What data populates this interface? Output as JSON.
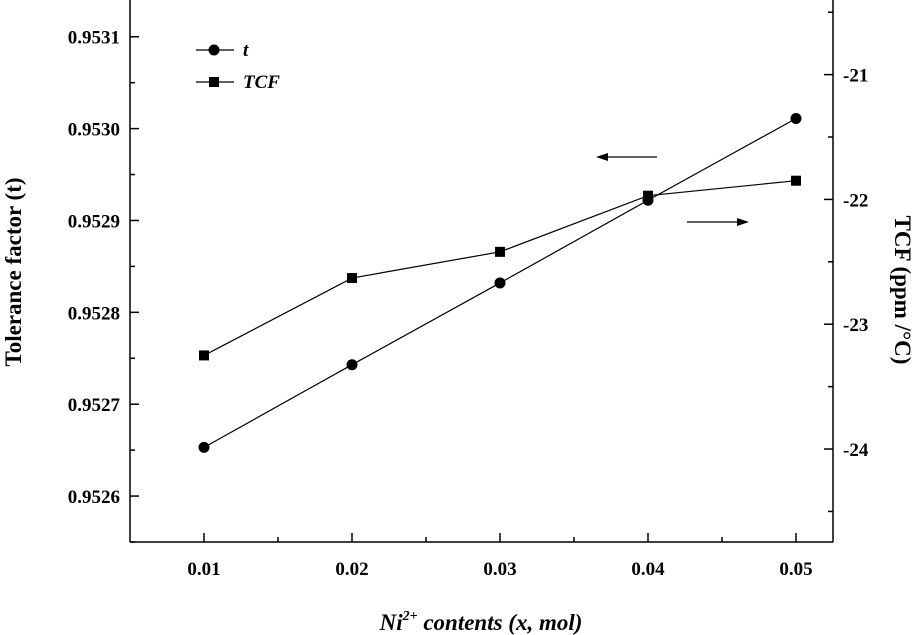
{
  "chart_data": {
    "type": "line",
    "x": [
      0.01,
      0.02,
      0.03,
      0.04,
      0.05
    ],
    "x_tick_labels": [
      "0.01",
      "0.02",
      "0.03",
      "0.04",
      "0.05"
    ],
    "xlim": [
      0.005,
      0.0525
    ],
    "xlabel": {
      "prefix": "Ni",
      "superscript": "2+",
      "suffix": " contents (x, mol)"
    },
    "y_left": {
      "label": "Tolerance factor (t)",
      "ylim": [
        0.95255,
        0.95314
      ],
      "ticks": [
        0.9526,
        0.9527,
        0.9528,
        0.9529,
        0.953,
        0.9531
      ],
      "tick_labels": [
        "0.9526",
        "0.9527",
        "0.9528",
        "0.9529",
        "0.9530",
        "0.9531"
      ]
    },
    "y_right": {
      "label": "TCF (ppm /°C)",
      "ylim": [
        -24.745,
        -20.402
      ],
      "ticks": [
        -21,
        -22,
        -23,
        -24
      ],
      "tick_labels": [
        "-21",
        "-22",
        "-23",
        "-24"
      ]
    },
    "series": [
      {
        "name": "t",
        "axis": "left",
        "marker": "circle",
        "values": [
          0.952653,
          0.952743,
          0.952832,
          0.952922,
          0.953011
        ]
      },
      {
        "name": "TCF",
        "axis": "right",
        "marker": "square",
        "values": [
          -23.25,
          -22.63,
          -22.42,
          -21.97,
          -21.85
        ]
      }
    ],
    "legend": {
      "position": "top-left"
    },
    "annotations": [
      {
        "type": "arrow",
        "direction": "left",
        "meaning": "t series uses left axis"
      },
      {
        "type": "arrow",
        "direction": "right",
        "meaning": "TCF series uses right axis"
      }
    ],
    "grid": false,
    "colors": {
      "line": "#000000",
      "marker": "#000000",
      "background": "#ffffff"
    }
  }
}
